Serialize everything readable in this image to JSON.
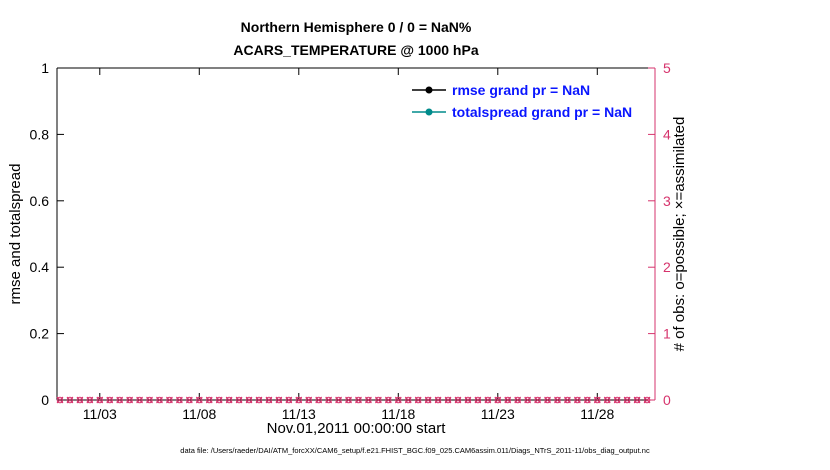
{
  "figure": {
    "caption": "data file: /Users/raeder/DAI/ATM_forcXX/CAM6_setup/f.e21.FHIST_BGC.f09_025.CAM6assim.011/Diags_NTrS_2011-11/obs_diag_output.nc"
  },
  "chart_data": {
    "type": "line",
    "title": "Northern Hemisphere 0 / 0 = NaN%",
    "subtitle": "ACARS_TEMPERATURE @ 1000 hPa",
    "left_axis": {
      "label": "rmse and totalspread",
      "range": [
        0,
        1
      ],
      "tick_labels": [
        "0",
        "0.2",
        "0.4",
        "0.6",
        "0.8",
        "1"
      ],
      "color": "#000000"
    },
    "right_axis": {
      "label": "# of obs: o=possible; ×=assimilated",
      "range": [
        0,
        5
      ],
      "tick_labels": [
        "0",
        "1",
        "2",
        "3",
        "4",
        "5"
      ],
      "color": "#d6336c"
    },
    "x_axis": {
      "label": "Nov.01,2011 00:00:00 start",
      "range_days": [
        0.85,
        30.9
      ],
      "ticks": [
        {
          "day": 3,
          "label": "11/03"
        },
        {
          "day": 8,
          "label": "11/08"
        },
        {
          "day": 13,
          "label": "11/13"
        },
        {
          "day": 18,
          "label": "11/18"
        },
        {
          "day": 23,
          "label": "11/23"
        },
        {
          "day": 28,
          "label": "11/28"
        }
      ],
      "grid": false
    },
    "series": [
      {
        "name": "rmse grand pr = NaN",
        "color": "#000000",
        "values": []
      },
      {
        "name": "totalspread grand pr = NaN",
        "color": "#008b8b",
        "values": []
      }
    ],
    "legend": {
      "position": "top-center-inside",
      "text_color": "#0a16ff"
    },
    "obs_counts": {
      "possible_symbol": "o",
      "assimilated_symbol": "×",
      "color": "#d6336c",
      "value": 0,
      "day_start": 1,
      "day_end": 30.5,
      "day_step": 0.5
    }
  }
}
